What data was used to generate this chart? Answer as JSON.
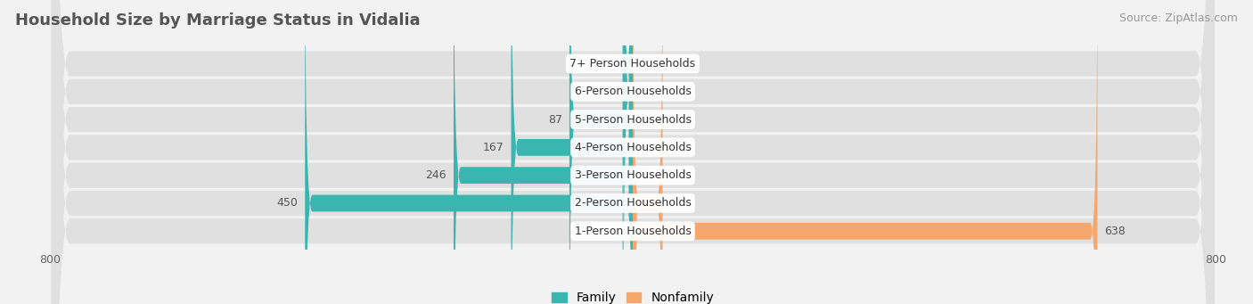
{
  "title": "Household Size by Marriage Status in Vidalia",
  "source": "Source: ZipAtlas.com",
  "categories": [
    "7+ Person Households",
    "6-Person Households",
    "5-Person Households",
    "4-Person Households",
    "3-Person Households",
    "2-Person Households",
    "1-Person Households"
  ],
  "family_values": [
    14,
    13,
    87,
    167,
    246,
    450,
    0
  ],
  "nonfamily_values": [
    0,
    0,
    0,
    0,
    0,
    41,
    638
  ],
  "family_color": "#3ab5b0",
  "nonfamily_color": "#f5a76c",
  "axis_min": -800,
  "axis_max": 800,
  "background_color": "#f2f2f2",
  "bar_background_color": "#e0e0e0",
  "title_fontsize": 13,
  "source_fontsize": 9,
  "label_fontsize": 9,
  "tick_fontsize": 9,
  "legend_fontsize": 10
}
